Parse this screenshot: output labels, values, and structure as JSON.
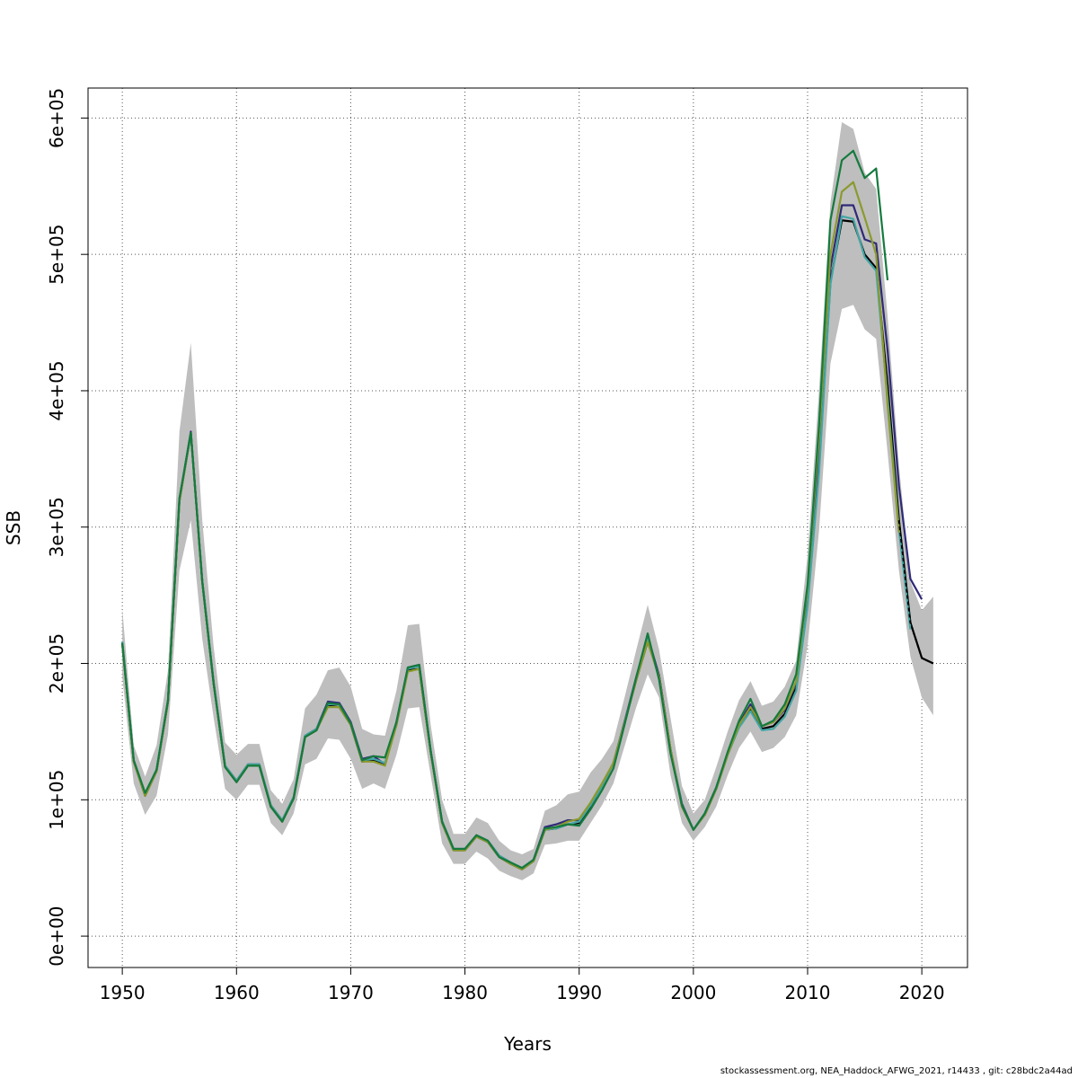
{
  "footer_text": "stockassessment.org, NEA_Haddock_AFWG_2021, r14433 , git: c28bdc2a44ad",
  "chart_data": {
    "type": "line",
    "xlabel": "Years",
    "ylabel": "SSB",
    "xlim": [
      1947,
      2024
    ],
    "ylim": [
      -23000,
      622000
    ],
    "x_ticks": [
      1950,
      1960,
      1970,
      1980,
      1990,
      2000,
      2010,
      2020
    ],
    "y_ticks": [
      0,
      100000,
      200000,
      300000,
      400000,
      500000,
      600000
    ],
    "y_tick_labels": [
      "0e+00",
      "1e+05",
      "2e+05",
      "3e+05",
      "4e+05",
      "5e+05",
      "6e+05"
    ],
    "grid": true,
    "legend": "none",
    "band_color": "#bebebe",
    "confidence_band": {
      "x": [
        1950,
        1951,
        1952,
        1953,
        1954,
        1955,
        1956,
        1957,
        1958,
        1959,
        1960,
        1961,
        1962,
        1963,
        1964,
        1965,
        1966,
        1967,
        1968,
        1969,
        1970,
        1971,
        1972,
        1973,
        1974,
        1975,
        1976,
        1977,
        1978,
        1979,
        1980,
        1981,
        1982,
        1983,
        1984,
        1985,
        1986,
        1987,
        1988,
        1989,
        1990,
        1991,
        1992,
        1993,
        1994,
        1995,
        1996,
        1997,
        1998,
        1999,
        2000,
        2001,
        2002,
        2003,
        2004,
        2005,
        2006,
        2007,
        2008,
        2009,
        2010,
        2011,
        2012,
        2013,
        2014,
        2015,
        2016,
        2017,
        2018,
        2019,
        2020,
        2021
      ],
      "lower": [
        190000,
        112000,
        89000,
        103000,
        148000,
        268000,
        305000,
        218000,
        160000,
        108000,
        100000,
        111000,
        111000,
        83000,
        74000,
        90000,
        126000,
        130000,
        145000,
        144000,
        130000,
        108000,
        112000,
        108000,
        133000,
        167000,
        168000,
        118000,
        68000,
        53000,
        53000,
        62000,
        57000,
        48000,
        44000,
        41000,
        46000,
        67000,
        68000,
        70000,
        70000,
        83000,
        96000,
        112000,
        140000,
        168000,
        192000,
        175000,
        118000,
        83000,
        70000,
        80000,
        95000,
        118000,
        138000,
        150000,
        135000,
        138000,
        146000,
        162000,
        213000,
        297000,
        420000,
        460000,
        463000,
        445000,
        438000,
        355000,
        268000,
        205000,
        175000,
        162000
      ],
      "upper": [
        240000,
        140000,
        117000,
        140000,
        195000,
        370000,
        435000,
        305000,
        212000,
        142000,
        133000,
        141000,
        141000,
        107000,
        97000,
        115000,
        167000,
        177000,
        195000,
        197000,
        183000,
        152000,
        148000,
        147000,
        180000,
        228000,
        229000,
        155000,
        100000,
        75000,
        75000,
        87000,
        83000,
        70000,
        63000,
        60000,
        64000,
        92000,
        96000,
        104000,
        106000,
        120000,
        130000,
        143000,
        176000,
        210000,
        243000,
        210000,
        160000,
        110000,
        90000,
        100000,
        124000,
        150000,
        173000,
        187000,
        169000,
        172000,
        183000,
        202000,
        280000,
        400000,
        538000,
        597000,
        592000,
        560000,
        548000,
        455000,
        345000,
        260000,
        239000,
        249000
      ]
    },
    "series": [
      {
        "color": "#000000",
        "dashed_tail": true,
        "x": [
          1950,
          1951,
          1952,
          1953,
          1954,
          1955,
          1956,
          1957,
          1958,
          1959,
          1960,
          1961,
          1962,
          1963,
          1964,
          1965,
          1966,
          1967,
          1968,
          1969,
          1970,
          1971,
          1972,
          1973,
          1974,
          1975,
          1976,
          1977,
          1978,
          1979,
          1980,
          1981,
          1982,
          1983,
          1984,
          1985,
          1986,
          1987,
          1988,
          1989,
          1990,
          1991,
          1992,
          1993,
          1994,
          1995,
          1996,
          1997,
          1998,
          1999,
          2000,
          2001,
          2002,
          2003,
          2004,
          2005,
          2006,
          2007,
          2008,
          2009,
          2010,
          2011,
          2012,
          2013,
          2014,
          2015,
          2016,
          2017,
          2018,
          2019,
          2020,
          2021
        ],
        "values": [
          214000,
          128000,
          103000,
          121000,
          172000,
          319000,
          369000,
          260000,
          185000,
          124000,
          113000,
          125000,
          125000,
          95000,
          84000,
          101000,
          146000,
          151000,
          169000,
          168000,
          155000,
          128000,
          129000,
          126000,
          155000,
          195000,
          196000,
          135000,
          83000,
          63000,
          63000,
          73000,
          69000,
          58000,
          53000,
          49000,
          55000,
          78000,
          79000,
          82000,
          83000,
          95000,
          111000,
          127000,
          157000,
          188000,
          216000,
          191000,
          137000,
          95000,
          78000,
          89000,
          108000,
          133000,
          154000,
          167000,
          152000,
          154000,
          163000,
          182000,
          245000,
          345000,
          480000,
          525000,
          524000,
          500000,
          490000,
          405000,
          305000,
          230000,
          204000,
          200000
        ]
      },
      {
        "color": "#2f2a78",
        "x": [
          1950,
          1951,
          1952,
          1953,
          1954,
          1955,
          1956,
          1957,
          1958,
          1959,
          1960,
          1961,
          1962,
          1963,
          1964,
          1965,
          1966,
          1967,
          1968,
          1969,
          1970,
          1971,
          1972,
          1973,
          1974,
          1975,
          1976,
          1977,
          1978,
          1979,
          1980,
          1981,
          1982,
          1983,
          1984,
          1985,
          1986,
          1987,
          1988,
          1989,
          1990,
          1991,
          1992,
          1993,
          1994,
          1995,
          1996,
          1997,
          1998,
          1999,
          2000,
          2001,
          2002,
          2003,
          2004,
          2005,
          2006,
          2007,
          2008,
          2009,
          2010,
          2011,
          2012,
          2013,
          2014,
          2015,
          2016,
          2017,
          2018,
          2019,
          2020
        ],
        "values": [
          215000,
          129000,
          104000,
          122000,
          173000,
          320000,
          370000,
          261000,
          186000,
          125000,
          114000,
          126000,
          126000,
          96000,
          85000,
          102000,
          147000,
          152000,
          172000,
          171000,
          157000,
          130000,
          132000,
          126000,
          157000,
          197000,
          199000,
          136000,
          84000,
          64000,
          64000,
          74000,
          70000,
          59000,
          54000,
          50000,
          56000,
          80000,
          82000,
          85000,
          85000,
          96000,
          110000,
          127000,
          158000,
          190000,
          220000,
          191000,
          136000,
          97000,
          78000,
          90000,
          109000,
          134000,
          156000,
          170000,
          154000,
          157000,
          166000,
          186000,
          250000,
          355000,
          490000,
          536000,
          536000,
          511000,
          508000,
          430000,
          330000,
          262000,
          247000
        ]
      },
      {
        "color": "#44a5a5",
        "x": [
          1950,
          1951,
          1952,
          1953,
          1954,
          1955,
          1956,
          1957,
          1958,
          1959,
          1960,
          1961,
          1962,
          1963,
          1964,
          1965,
          1966,
          1967,
          1968,
          1969,
          1970,
          1971,
          1972,
          1973,
          1974,
          1975,
          1976,
          1977,
          1978,
          1979,
          1980,
          1981,
          1982,
          1983,
          1984,
          1985,
          1986,
          1987,
          1988,
          1989,
          1990,
          1991,
          1992,
          1993,
          1994,
          1995,
          1996,
          1997,
          1998,
          1999,
          2000,
          2001,
          2002,
          2003,
          2004,
          2005,
          2006,
          2007,
          2008,
          2009,
          2010,
          2011,
          2012,
          2013,
          2014,
          2015,
          2016,
          2017,
          2018,
          2019
        ],
        "values": [
          216000,
          129000,
          104000,
          122000,
          173000,
          320000,
          369000,
          261000,
          186000,
          125000,
          114000,
          126000,
          126000,
          96000,
          85000,
          102000,
          147000,
          152000,
          170000,
          170000,
          156000,
          129000,
          130000,
          127000,
          156000,
          196000,
          198000,
          136000,
          84000,
          64000,
          64000,
          74000,
          70000,
          59000,
          54000,
          50000,
          56000,
          78000,
          79000,
          82000,
          84000,
          96000,
          110000,
          127000,
          157000,
          189000,
          218000,
          189000,
          136000,
          96000,
          78000,
          90000,
          108000,
          133000,
          153000,
          165000,
          151000,
          152000,
          161000,
          180000,
          242000,
          340000,
          478000,
          528000,
          526000,
          498000,
          488000,
          395000,
          298000,
          225000
        ]
      },
      {
        "color": "#8b9a2e",
        "x": [
          1950,
          1951,
          1952,
          1953,
          1954,
          1955,
          1956,
          1957,
          1958,
          1959,
          1960,
          1961,
          1962,
          1963,
          1964,
          1965,
          1966,
          1967,
          1968,
          1969,
          1970,
          1971,
          1972,
          1973,
          1974,
          1975,
          1976,
          1977,
          1978,
          1979,
          1980,
          1981,
          1982,
          1983,
          1984,
          1985,
          1986,
          1987,
          1988,
          1989,
          1990,
          1991,
          1992,
          1993,
          1994,
          1995,
          1996,
          1997,
          1998,
          1999,
          2000,
          2001,
          2002,
          2003,
          2004,
          2005,
          2006,
          2007,
          2008,
          2009,
          2010,
          2011,
          2012,
          2013,
          2014,
          2015,
          2016,
          2017,
          2018
        ],
        "values": [
          214000,
          128000,
          103000,
          121000,
          172000,
          319000,
          369000,
          260000,
          185000,
          124000,
          113000,
          125000,
          125000,
          95000,
          84000,
          101000,
          146000,
          151000,
          168000,
          168000,
          155000,
          128000,
          128000,
          125000,
          155000,
          194000,
          196000,
          135000,
          83000,
          63000,
          63000,
          73000,
          69000,
          58000,
          53000,
          49000,
          55000,
          78000,
          80000,
          84000,
          86000,
          98000,
          112000,
          127000,
          157000,
          188000,
          216000,
          190000,
          137000,
          95000,
          78000,
          89000,
          108000,
          133000,
          155000,
          168000,
          154000,
          157000,
          167000,
          187000,
          255000,
          365000,
          500000,
          546000,
          553000,
          527000,
          500000,
          390000,
          296000
        ]
      },
      {
        "color": "#157a3e",
        "x": [
          1950,
          1951,
          1952,
          1953,
          1954,
          1955,
          1956,
          1957,
          1958,
          1959,
          1960,
          1961,
          1962,
          1963,
          1964,
          1965,
          1966,
          1967,
          1968,
          1969,
          1970,
          1971,
          1972,
          1973,
          1974,
          1975,
          1976,
          1977,
          1978,
          1979,
          1980,
          1981,
          1982,
          1983,
          1984,
          1985,
          1986,
          1987,
          1988,
          1989,
          1990,
          1991,
          1992,
          1993,
          1994,
          1995,
          1996,
          1997,
          1998,
          1999,
          2000,
          2001,
          2002,
          2003,
          2004,
          2005,
          2006,
          2007,
          2008,
          2009,
          2010,
          2011,
          2012,
          2013,
          2014,
          2015,
          2016,
          2017
        ],
        "values": [
          215000,
          129000,
          105000,
          122000,
          173000,
          321000,
          369000,
          260000,
          185000,
          124000,
          113000,
          125000,
          125000,
          95000,
          84000,
          101000,
          146000,
          151000,
          171000,
          170000,
          156000,
          129000,
          132000,
          131000,
          157000,
          197000,
          199000,
          136000,
          84000,
          64000,
          64000,
          74000,
          70000,
          58000,
          54000,
          50000,
          56000,
          79000,
          80000,
          82000,
          81000,
          93000,
          107000,
          123000,
          156000,
          190000,
          222000,
          188000,
          134000,
          96000,
          78000,
          90000,
          109000,
          135000,
          158000,
          174000,
          154000,
          158000,
          170000,
          192000,
          258000,
          375000,
          525000,
          569000,
          576000,
          556000,
          563000,
          481000
        ]
      }
    ]
  }
}
